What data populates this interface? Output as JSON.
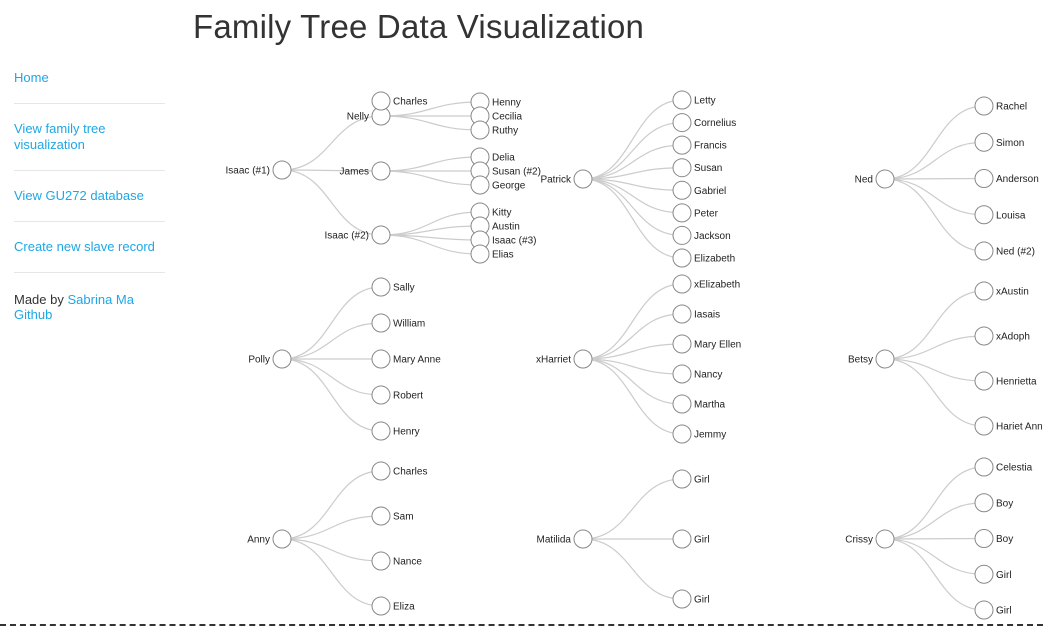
{
  "page": {
    "title": "Family Tree Data Visualization"
  },
  "sidebar": {
    "items": [
      {
        "label": "Home"
      },
      {
        "label": "View family tree visualization"
      },
      {
        "label": "View GU272 database"
      },
      {
        "label": "Create new slave record"
      }
    ],
    "credit_prefix": "Made by ",
    "credit_author": "Sabrina Ma",
    "credit_github": "Github"
  },
  "trees": [
    {
      "root": "Isaac (#1)",
      "children": [
        {
          "name": "Nelly",
          "children": [
            {
              "name": "Charles"
            },
            {
              "name": "Henny"
            },
            {
              "name": "Cecilia"
            },
            {
              "name": "Ruthy"
            }
          ]
        },
        {
          "name": "James",
          "children": [
            {
              "name": "Delia"
            },
            {
              "name": "Susan (#2)"
            },
            {
              "name": "George"
            }
          ]
        },
        {
          "name": "Isaac (#2)",
          "children": [
            {
              "name": "Kitty"
            },
            {
              "name": "Austin"
            },
            {
              "name": "Isaac (#3)"
            },
            {
              "name": "Elias"
            }
          ]
        }
      ]
    },
    {
      "root": "Patrick",
      "children": [
        {
          "name": "Letty"
        },
        {
          "name": "Cornelius"
        },
        {
          "name": "Francis"
        },
        {
          "name": "Susan"
        },
        {
          "name": "Gabriel"
        },
        {
          "name": "Peter"
        },
        {
          "name": "Jackson"
        },
        {
          "name": "Elizabeth"
        }
      ]
    },
    {
      "root": "Ned",
      "children": [
        {
          "name": "Rachel"
        },
        {
          "name": "Simon"
        },
        {
          "name": "Anderson"
        },
        {
          "name": "Louisa"
        },
        {
          "name": "Ned (#2)"
        }
      ]
    },
    {
      "root": "Polly",
      "children": [
        {
          "name": "Sally"
        },
        {
          "name": "William"
        },
        {
          "name": "Mary Anne"
        },
        {
          "name": "Robert"
        },
        {
          "name": "Henry"
        }
      ]
    },
    {
      "root": "xHarriet",
      "children": [
        {
          "name": "xElizabeth"
        },
        {
          "name": "Iasais"
        },
        {
          "name": "Mary Ellen"
        },
        {
          "name": "Nancy"
        },
        {
          "name": "Martha"
        },
        {
          "name": "Jemmy"
        }
      ]
    },
    {
      "root": "Betsy",
      "children": [
        {
          "name": "xAustin"
        },
        {
          "name": "xAdoph"
        },
        {
          "name": "Henrietta"
        },
        {
          "name": "Hariet Ann"
        }
      ]
    },
    {
      "root": "Anny",
      "children": [
        {
          "name": "Charles"
        },
        {
          "name": "Sam"
        },
        {
          "name": "Nance"
        },
        {
          "name": "Eliza"
        }
      ]
    },
    {
      "root": "Matilida",
      "children": [
        {
          "name": "Girl"
        },
        {
          "name": "Girl"
        },
        {
          "name": "Girl"
        }
      ]
    },
    {
      "root": "Crissy",
      "children": [
        {
          "name": "Celestia"
        },
        {
          "name": "Boy"
        },
        {
          "name": "Boy"
        },
        {
          "name": "Girl"
        },
        {
          "name": "Girl"
        }
      ]
    }
  ]
}
